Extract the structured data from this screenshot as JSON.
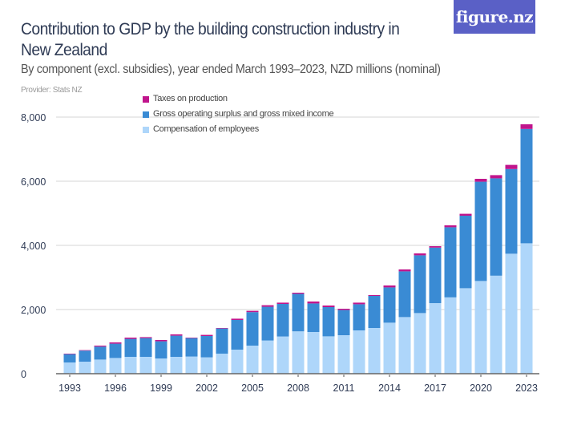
{
  "header": {
    "title": "Contribution to GDP by the building construction industry in New Zealand",
    "subtitle": "By component (excl. subsidies), year ended March 1993–2023, NZD millions (nominal)",
    "provider": "Provider: Stats NZ",
    "logo": "figure.nz"
  },
  "colors": {
    "taxes": "#c0158c",
    "gos": "#3a8bd4",
    "comp": "#aed6fa",
    "logo_bg": "#5a60c6"
  },
  "chart_data": {
    "type": "bar",
    "stacked": true,
    "title": "Contribution to GDP by the building construction industry in New Zealand",
    "subtitle": "By component (excl. subsidies), year ended March 1993–2023, NZD millions (nominal)",
    "xlabel": "",
    "ylabel": "",
    "ylim": [
      0,
      8000
    ],
    "yticks": [
      "0",
      "2,000",
      "4,000",
      "6,000",
      "8,000"
    ],
    "ytick_values": [
      0,
      2000,
      4000,
      6000,
      8000
    ],
    "xtick_labels": [
      "1993",
      "1996",
      "1999",
      "2002",
      "2005",
      "2008",
      "2011",
      "2014",
      "2017",
      "2020",
      "2023"
    ],
    "grid": true,
    "legend_position": "top",
    "categories": [
      1993,
      1994,
      1995,
      1996,
      1997,
      1998,
      1999,
      2000,
      2001,
      2002,
      2003,
      2004,
      2005,
      2006,
      2007,
      2008,
      2009,
      2010,
      2011,
      2012,
      2013,
      2014,
      2015,
      2016,
      2017,
      2018,
      2019,
      2020,
      2021,
      2022,
      2023
    ],
    "series": [
      {
        "name": "Compensation of employees",
        "color": "#aed6fa",
        "values": [
          350,
          375,
          440,
          490,
          525,
          525,
          475,
          525,
          535,
          510,
          625,
          750,
          875,
          1035,
          1160,
          1320,
          1300,
          1165,
          1200,
          1350,
          1425,
          1590,
          1765,
          1890,
          2200,
          2380,
          2665,
          2890,
          3055,
          3740,
          4065
        ]
      },
      {
        "name": "Gross operating surplus and gross mixed income",
        "color": "#3a8bd4",
        "values": [
          260,
          345,
          405,
          445,
          560,
          585,
          535,
          660,
          575,
          665,
          785,
          925,
          1045,
          1050,
          1015,
          1170,
          890,
          910,
          785,
          815,
          1000,
          1100,
          1425,
          1800,
          1730,
          2185,
          2260,
          3095,
          3035,
          2640,
          3565
        ]
      },
      {
        "name": "Taxes on production",
        "color": "#c0158c",
        "values": [
          15,
          15,
          30,
          40,
          40,
          30,
          40,
          40,
          15,
          35,
          15,
          40,
          40,
          50,
          40,
          35,
          60,
          50,
          40,
          50,
          25,
          60,
          60,
          60,
          45,
          60,
          60,
          90,
          100,
          130,
          145
        ]
      }
    ]
  }
}
